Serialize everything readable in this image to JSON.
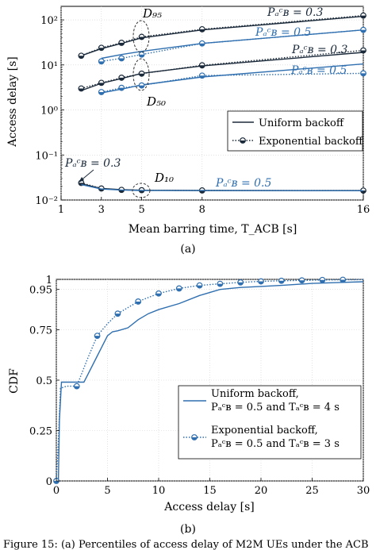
{
  "colors": {
    "dark": "#1b2a3a",
    "blue": "#2f6fb0",
    "axis": "#000000"
  },
  "panel_a": {
    "caption": "(a)",
    "annotations": {
      "d95": "D₉₅",
      "d50": "D₅₀",
      "d10": "D₁₀",
      "p03_top": "Pₐᶜʙ = 0.3",
      "p05_top": "Pₐᶜʙ = 0.5",
      "p03_mid": "Pₐᶜʙ = 0.3",
      "p05_mid": "Pₐᶜʙ = 0.5",
      "p03_low": "Pₐᶜʙ = 0.3",
      "p05_low": "Pₐᶜʙ = 0.5"
    }
  },
  "panel_b": {
    "caption": "(b)"
  },
  "footer": {
    "text": "Figure 15: (a) Percentiles of access delay of M2M UEs under the ACB"
  },
  "chart_data": [
    {
      "type": "line",
      "xlabel": "Mean barring time, T_ACB [s]",
      "ylabel": "Access delay [s]",
      "xlim": [
        1,
        16
      ],
      "ylim": [
        0.01,
        200
      ],
      "yscale": "log",
      "grid": true,
      "x_ticks": [
        1,
        3,
        5,
        8,
        16
      ],
      "x_tick_labels": [
        "1",
        "3",
        "5",
        "8",
        "16"
      ],
      "y_ticks": [
        0.01,
        0.1,
        1,
        10,
        100
      ],
      "y_tick_labels": [
        "10⁻²",
        "10⁻¹",
        "10⁰",
        "10¹",
        "10²"
      ],
      "legend": {
        "position": "right",
        "entries": [
          "Uniform backoff",
          "Exponential backoff"
        ]
      },
      "series": [
        {
          "name": "D95 P=0.3 uniform",
          "style": "solid",
          "color": "dark",
          "x": [
            2,
            3,
            4,
            5,
            8,
            16
          ],
          "y": [
            16,
            23,
            30,
            40,
            60,
            120
          ]
        },
        {
          "name": "D95 P=0.3 exponential",
          "style": "dotted",
          "color": "dark",
          "marker": true,
          "x": [
            2,
            3,
            4,
            5,
            8,
            16
          ],
          "y": [
            16,
            24,
            31,
            42,
            62,
            125
          ]
        },
        {
          "name": "D95 P=0.5 uniform",
          "style": "solid",
          "color": "blue",
          "x": [
            3,
            4,
            5,
            8,
            16
          ],
          "y": [
            14,
            17,
            20,
            30,
            60
          ]
        },
        {
          "name": "D95 P=0.5 exponential",
          "style": "dotted",
          "color": "blue",
          "marker": true,
          "x": [
            3,
            4,
            5,
            8,
            16
          ],
          "y": [
            12,
            14,
            17,
            30,
            60
          ]
        },
        {
          "name": "D50 P=0.3 uniform",
          "style": "solid",
          "color": "dark",
          "x": [
            2,
            3,
            4,
            5,
            8,
            16
          ],
          "y": [
            2.7,
            3.9,
            5.0,
            6.5,
            9.5,
            19
          ]
        },
        {
          "name": "D50 P=0.3 exponential",
          "style": "dotted",
          "color": "dark",
          "marker": true,
          "x": [
            2,
            3,
            4,
            5,
            8,
            16
          ],
          "y": [
            3.0,
            4.0,
            5.2,
            6.4,
            9.8,
            21
          ]
        },
        {
          "name": "D50 P=0.5 uniform",
          "style": "solid",
          "color": "blue",
          "x": [
            3,
            4,
            5,
            8,
            16
          ],
          "y": [
            2.4,
            2.9,
            3.6,
            5.4,
            10.5
          ]
        },
        {
          "name": "D50 P=0.5 exponential",
          "style": "dotted",
          "color": "blue",
          "marker": true,
          "x": [
            3,
            4,
            5,
            8,
            16
          ],
          "y": [
            2.5,
            3.1,
            3.5,
            5.8,
            6.5
          ]
        },
        {
          "name": "D10 P=0.3 uniform",
          "style": "solid",
          "color": "dark",
          "x": [
            2,
            3,
            4,
            5,
            8,
            16
          ],
          "y": [
            0.023,
            0.018,
            0.017,
            0.0165,
            0.0163,
            0.0162
          ]
        },
        {
          "name": "D10 P=0.3 exponential",
          "style": "dotted",
          "color": "dark",
          "marker": true,
          "x": [
            2,
            3,
            4,
            5,
            8,
            16
          ],
          "y": [
            0.024,
            0.018,
            0.0168,
            0.0165,
            0.0163,
            0.0162
          ]
        },
        {
          "name": "D10 P=0.5 uniform",
          "style": "solid",
          "color": "blue",
          "x": [
            2,
            3,
            4,
            5,
            8,
            16
          ],
          "y": [
            0.022,
            0.0175,
            0.0167,
            0.0163,
            0.0162,
            0.0161
          ]
        }
      ]
    },
    {
      "type": "line",
      "xlabel": "Access delay [s]",
      "ylabel": "CDF",
      "xlim": [
        0,
        30
      ],
      "ylim": [
        0,
        1
      ],
      "grid": true,
      "x_ticks": [
        0,
        5,
        10,
        15,
        20,
        25,
        30
      ],
      "x_tick_labels": [
        "0",
        "5",
        "10",
        "15",
        "20",
        "25",
        "30"
      ],
      "y_ticks": [
        0,
        0.25,
        0.5,
        0.75,
        0.95,
        1
      ],
      "y_tick_labels": [
        "0",
        "0.25",
        "0.5",
        "0.75",
        "0.95",
        "1"
      ],
      "legend": {
        "position": "bottom-right",
        "entries": [
          [
            "Uniform backoff,",
            "Pₐᶜʙ = 0.5 and Tₐᶜʙ = 4 s"
          ],
          [
            "Exponential backoff,",
            "Pₐᶜʙ = 0.5 and Tₐᶜʙ = 3 s"
          ]
        ]
      },
      "series": [
        {
          "name": "Uniform backoff",
          "style": "solid",
          "color": "blue",
          "x": [
            0,
            0.2,
            0.3,
            0.5,
            1,
            2,
            2.7,
            3,
            4,
            5,
            5.5,
            6,
            7,
            8,
            9,
            10,
            12,
            14,
            16,
            18,
            20,
            22,
            25,
            28,
            30
          ],
          "y": [
            0,
            0,
            0.3,
            0.49,
            0.49,
            0.49,
            0.49,
            0.52,
            0.62,
            0.72,
            0.74,
            0.745,
            0.76,
            0.8,
            0.83,
            0.85,
            0.88,
            0.92,
            0.95,
            0.96,
            0.965,
            0.97,
            0.98,
            0.985,
            0.988
          ]
        },
        {
          "name": "Exponential backoff",
          "style": "dotted",
          "color": "blue",
          "marker": true,
          "x": [
            0,
            0.2,
            0.4,
            1,
            2,
            3,
            4,
            5,
            6,
            8,
            10,
            12,
            14,
            16,
            18,
            20,
            22,
            24,
            26,
            28,
            30
          ],
          "y": [
            0,
            0.2,
            0.46,
            0.47,
            0.47,
            0.6,
            0.72,
            0.78,
            0.83,
            0.89,
            0.93,
            0.955,
            0.97,
            0.978,
            0.985,
            0.99,
            0.993,
            0.995,
            0.997,
            0.998,
            0.999
          ],
          "marker_x": [
            0,
            2,
            4,
            6,
            8,
            10,
            12,
            14,
            16,
            18,
            20,
            22,
            24,
            26,
            28
          ]
        }
      ]
    }
  ]
}
